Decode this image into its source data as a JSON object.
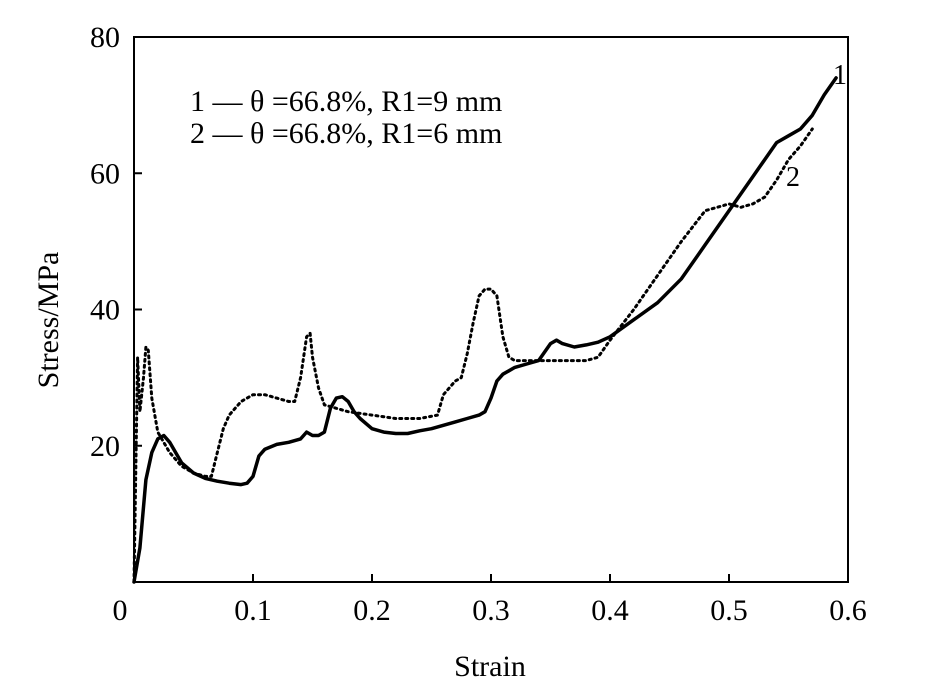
{
  "chart_data": {
    "type": "line",
    "xlabel": "Strain",
    "ylabel": "Stress/MPa",
    "xlim": [
      0,
      0.6
    ],
    "ylim": [
      0,
      80
    ],
    "x_ticks": [
      "0",
      "0.1",
      "0.2",
      "0.3",
      "0.4",
      "0.5",
      "0.6"
    ],
    "y_ticks": [
      "20",
      "40",
      "60",
      "80"
    ],
    "grid": false,
    "legend": [
      "1 — θ =66.8%, R1=9 mm",
      "2 — θ =66.8%, R1=6 mm"
    ],
    "curve_labels": [
      "1",
      "2"
    ],
    "series": [
      {
        "label": "1",
        "style": "solid",
        "x": [
          0.0,
          0.005,
          0.01,
          0.015,
          0.02,
          0.025,
          0.03,
          0.035,
          0.04,
          0.05,
          0.06,
          0.07,
          0.08,
          0.09,
          0.095,
          0.1,
          0.105,
          0.11,
          0.12,
          0.13,
          0.14,
          0.145,
          0.15,
          0.155,
          0.16,
          0.165,
          0.17,
          0.175,
          0.18,
          0.185,
          0.19,
          0.2,
          0.21,
          0.22,
          0.23,
          0.24,
          0.25,
          0.26,
          0.27,
          0.28,
          0.29,
          0.295,
          0.3,
          0.305,
          0.31,
          0.315,
          0.32,
          0.33,
          0.34,
          0.35,
          0.355,
          0.36,
          0.37,
          0.38,
          0.39,
          0.4,
          0.42,
          0.44,
          0.46,
          0.48,
          0.5,
          0.52,
          0.54,
          0.55,
          0.56,
          0.57,
          0.58,
          0.59
        ],
        "y": [
          0,
          5,
          15,
          19,
          21,
          21.5,
          20.5,
          19,
          17.5,
          16,
          15.2,
          14.8,
          14.5,
          14.3,
          14.5,
          15.5,
          18.5,
          19.5,
          20.2,
          20.5,
          21,
          22,
          21.5,
          21.5,
          22,
          25.5,
          27,
          27.2,
          26.5,
          25,
          24,
          22.5,
          22,
          21.8,
          21.8,
          22.2,
          22.5,
          23,
          23.5,
          24,
          24.5,
          25,
          27,
          29.5,
          30.5,
          31,
          31.5,
          32,
          32.5,
          35,
          35.5,
          35,
          34.5,
          34.8,
          35.2,
          36,
          38.5,
          41,
          44.5,
          49.5,
          54.5,
          59.5,
          64.5,
          65.5,
          66.5,
          68.5,
          71.5,
          74
        ]
      },
      {
        "label": "2",
        "style": "dotted",
        "x": [
          0.0,
          0.003,
          0.005,
          0.008,
          0.01,
          0.012,
          0.015,
          0.02,
          0.03,
          0.04,
          0.05,
          0.06,
          0.065,
          0.07,
          0.075,
          0.08,
          0.09,
          0.1,
          0.11,
          0.12,
          0.13,
          0.135,
          0.14,
          0.145,
          0.148,
          0.15,
          0.155,
          0.16,
          0.17,
          0.18,
          0.2,
          0.22,
          0.24,
          0.255,
          0.26,
          0.265,
          0.27,
          0.275,
          0.28,
          0.285,
          0.29,
          0.295,
          0.3,
          0.305,
          0.31,
          0.315,
          0.32,
          0.33,
          0.34,
          0.35,
          0.36,
          0.37,
          0.38,
          0.39,
          0.4,
          0.42,
          0.44,
          0.46,
          0.48,
          0.5,
          0.51,
          0.52,
          0.53,
          0.54,
          0.55,
          0.56,
          0.57
        ],
        "y": [
          0,
          33,
          25,
          30,
          34.5,
          34,
          27,
          22,
          19,
          17,
          16,
          15.5,
          15.5,
          19,
          22.5,
          24.5,
          26.5,
          27.5,
          27.5,
          27,
          26.5,
          26.5,
          30,
          36,
          36.5,
          33,
          28.5,
          26,
          25.5,
          25,
          24.5,
          24,
          24,
          24.5,
          27.5,
          28.5,
          29.5,
          30,
          33.5,
          38,
          42,
          43,
          43,
          42,
          36,
          33,
          32.5,
          32.5,
          32.5,
          32.5,
          32.5,
          32.5,
          32.5,
          33,
          35.5,
          40,
          45,
          50,
          54.5,
          55.5,
          55,
          55.5,
          56.5,
          59,
          62,
          64,
          66.5
        ]
      }
    ]
  }
}
